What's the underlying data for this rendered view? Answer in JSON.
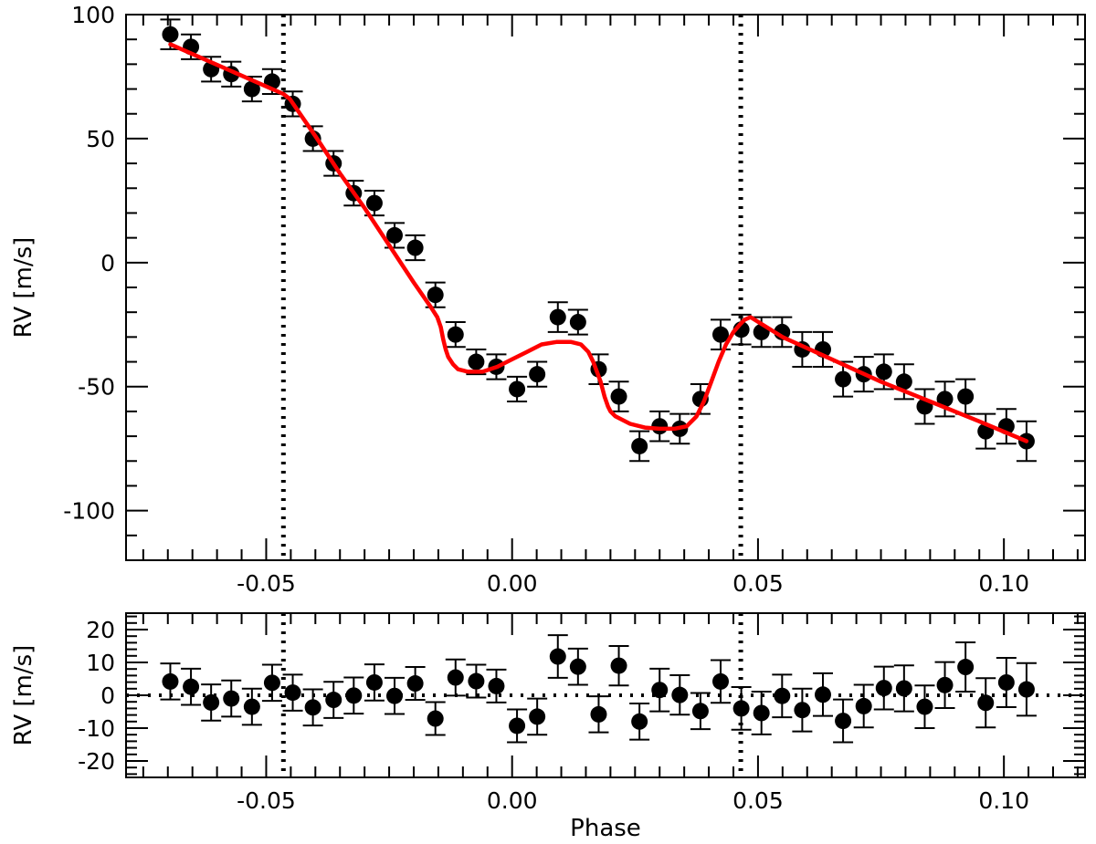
{
  "chart_data": [
    {
      "type": "scatter",
      "ylabel": "RV [m/s]",
      "xlim": [
        -0.0785,
        0.1165
      ],
      "ylim": [
        -120,
        100
      ],
      "xticks": [
        "-0.05",
        "0.00",
        "0.05",
        "0.10"
      ],
      "yticks": [
        "100",
        "50",
        "0",
        "-50",
        "-100"
      ],
      "vlines_x": [
        -0.0465,
        0.0465
      ],
      "series": [
        {
          "kind": "points",
          "x": [
            -0.0695,
            -0.0653,
            -0.0612,
            -0.0571,
            -0.0529,
            -0.0488,
            -0.0446,
            -0.0405,
            -0.0363,
            -0.0322,
            -0.028,
            -0.0239,
            -0.0197,
            -0.0156,
            -0.0115,
            -0.0073,
            -0.0032,
            0.001,
            0.0051,
            0.0093,
            0.0134,
            0.0176,
            0.0217,
            0.0259,
            0.03,
            0.0341,
            0.0383,
            0.0424,
            0.0466,
            0.0507,
            0.0549,
            0.059,
            0.0632,
            0.0673,
            0.0715,
            0.0756,
            0.0797,
            0.0839,
            0.088,
            0.0922,
            0.0963,
            0.1005,
            0.1046
          ],
          "y": [
            92,
            87,
            78,
            76,
            70,
            73,
            64,
            50,
            40,
            28,
            24,
            11,
            6,
            -13,
            -29,
            -40,
            -42,
            -51,
            -45,
            -22,
            -24,
            -43,
            -54,
            -74,
            -66,
            -67,
            -55,
            -29,
            -27,
            -28,
            -28,
            -35,
            -35,
            -47,
            -45,
            -44,
            -48,
            -58,
            -55,
            -54,
            -68,
            -66,
            -72
          ],
          "err": [
            6,
            5,
            5,
            5,
            5,
            5,
            5,
            5,
            5,
            5,
            5,
            5,
            5,
            5,
            5,
            5,
            5,
            5,
            5,
            6,
            5,
            6,
            6,
            6,
            6,
            6,
            6,
            6,
            6,
            6,
            6,
            7,
            7,
            7,
            7,
            7,
            7,
            7,
            7,
            7,
            7,
            7,
            8
          ]
        },
        {
          "kind": "model",
          "color": "#ff0000",
          "x": [
            -0.0695,
            -0.0465,
            -0.0452,
            -0.04,
            -0.035,
            -0.03,
            -0.025,
            -0.02,
            -0.0165,
            -0.0152,
            -0.0145,
            -0.014,
            -0.0135,
            -0.013,
            -0.012,
            -0.011,
            -0.009,
            -0.006,
            -0.003,
            0.0,
            0.003,
            0.006,
            0.009,
            0.012,
            0.014,
            0.0155,
            0.0165,
            0.018,
            0.0188,
            0.0195,
            0.02,
            0.021,
            0.024,
            0.027,
            0.03,
            0.033,
            0.0355,
            0.0375,
            0.039,
            0.0405,
            0.042,
            0.0435,
            0.045,
            0.0463,
            0.0473,
            0.0485,
            0.055,
            0.065,
            0.075,
            0.085,
            0.095,
            0.1046
          ],
          "y": [
            88,
            68,
            66,
            51,
            36,
            22,
            7,
            -8,
            -18,
            -22,
            -26,
            -31,
            -35,
            -38,
            -41,
            -43,
            -44,
            -44,
            -42,
            -39,
            -36,
            -33,
            -32,
            -32,
            -33,
            -36,
            -40,
            -48,
            -54,
            -58,
            -60,
            -62,
            -65,
            -66.5,
            -67,
            -67,
            -66,
            -62,
            -56,
            -48,
            -40,
            -33,
            -28,
            -25,
            -23,
            -22,
            -30,
            -39,
            -48,
            -56,
            -64,
            -72
          ]
        }
      ]
    },
    {
      "type": "scatter",
      "xlabel": "Phase",
      "ylabel": "RV [m/s]",
      "xlim": [
        -0.0785,
        0.1165
      ],
      "ylim": [
        -25,
        25
      ],
      "xticks": [
        "-0.05",
        "0.00",
        "0.05",
        "0.10"
      ],
      "yticks": [
        "20",
        "10",
        "0",
        "-10",
        "-20"
      ],
      "vlines_x": [
        -0.0465,
        0.0465
      ],
      "zero_line": true,
      "series": [
        {
          "kind": "points",
          "x": [
            -0.0695,
            -0.0653,
            -0.0612,
            -0.0571,
            -0.0529,
            -0.0488,
            -0.0446,
            -0.0405,
            -0.0363,
            -0.0322,
            -0.028,
            -0.0239,
            -0.0197,
            -0.0156,
            -0.0115,
            -0.0073,
            -0.0032,
            0.001,
            0.0051,
            0.0093,
            0.0134,
            0.0176,
            0.0217,
            0.0259,
            0.03,
            0.0341,
            0.0383,
            0.0424,
            0.0466,
            0.0507,
            0.0549,
            0.059,
            0.0632,
            0.0673,
            0.0715,
            0.0756,
            0.0797,
            0.0839,
            0.088,
            0.0922,
            0.0963,
            0.1005,
            0.1046
          ],
          "y": [
            4.2,
            2.6,
            -2.2,
            -1.0,
            -3.5,
            3.8,
            0.8,
            -3.7,
            -1.4,
            -0.1,
            3.9,
            -0.2,
            3.6,
            -7.1,
            5.4,
            4.3,
            2.8,
            -9.3,
            -6.5,
            11.8,
            8.7,
            -5.8,
            9.0,
            -8.0,
            1.6,
            0.1,
            -4.8,
            4.2,
            -4.0,
            -5.4,
            -0.2,
            -4.5,
            0.2,
            -7.8,
            -3.3,
            2.2,
            2.1,
            -3.5,
            3.1,
            8.6,
            -2.3,
            3.9,
            1.8
          ],
          "err": [
            5.5,
            5.5,
            5.5,
            5.5,
            5.5,
            5.5,
            5.5,
            5.5,
            5.5,
            5.5,
            5.5,
            5.5,
            5.0,
            5.0,
            5.5,
            5.0,
            5.0,
            5.0,
            5.5,
            6.5,
            5.5,
            5.5,
            6.0,
            5.5,
            6.5,
            6.0,
            5.5,
            6.5,
            6.5,
            6.5,
            6.5,
            6.5,
            6.5,
            6.5,
            6.5,
            6.5,
            7.0,
            6.5,
            7.0,
            7.5,
            7.5,
            7.5,
            8.0
          ]
        }
      ]
    }
  ]
}
